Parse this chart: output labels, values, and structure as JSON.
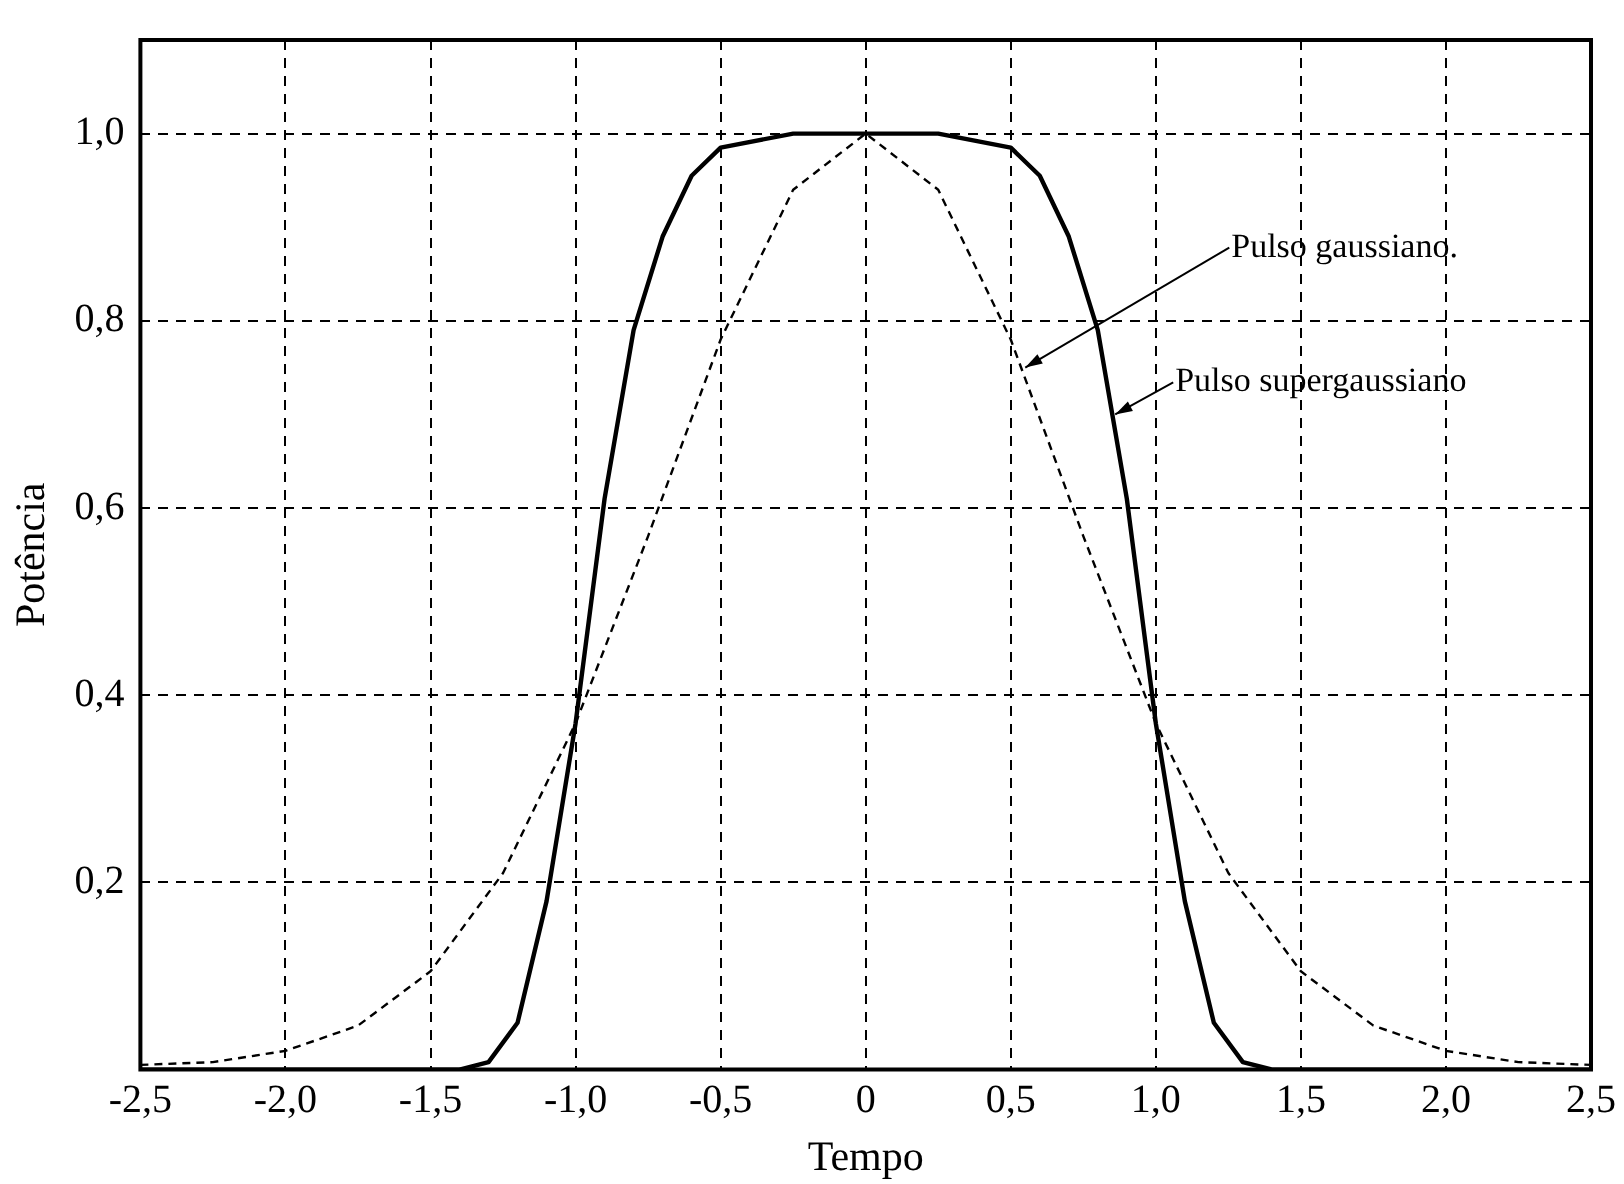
{
  "chart_data": {
    "type": "line",
    "xlabel": "Tempo",
    "ylabel": "Potência",
    "xlim": [
      -2.5,
      2.5
    ],
    "xticks": [
      {
        "value": -2.5,
        "label": "-2,5"
      },
      {
        "value": -2,
        "label": "-2,0"
      },
      {
        "value": -1.5,
        "label": "-1,5"
      },
      {
        "value": -1,
        "label": "-1,0"
      },
      {
        "value": -0.5,
        "label": "-0,5"
      },
      0,
      {
        "value": 0.5,
        "label": "0,5"
      },
      {
        "value": 1,
        "label": "1,0"
      },
      {
        "value": 1.5,
        "label": "1,5"
      },
      {
        "value": 2,
        "label": "2,0"
      },
      {
        "value": 2.5,
        "label": "2,5"
      }
    ],
    "ylim": [
      0,
      1.1
    ],
    "yticks": [
      {
        "value": 0.2,
        "label": "0,2"
      },
      {
        "value": 0.4,
        "label": "0,4"
      },
      {
        "value": 0.6,
        "label": "0,6"
      },
      {
        "value": 0.8,
        "label": "0,8"
      },
      {
        "value": 1,
        "label": "1,0"
      }
    ],
    "grid": true,
    "legend": false,
    "series": [
      {
        "color": "#000000",
        "line_style": "solid",
        "x": [
          -2.5,
          -1.4,
          -1.3,
          -1.2,
          -1.1,
          -1.0,
          -0.9,
          -0.8,
          -0.7,
          -0.6,
          -0.5,
          -0.25,
          0,
          0.25,
          0.5,
          0.6,
          0.7,
          0.8,
          0.9,
          1.0,
          1.1,
          1.2,
          1.3,
          1.4,
          2.5
        ],
        "values": [
          0,
          0,
          0.008,
          0.05,
          0.18,
          0.37,
          0.61,
          0.79,
          0.89,
          0.955,
          0.985,
          1.0,
          1.0,
          1.0,
          0.985,
          0.955,
          0.89,
          0.79,
          0.61,
          0.37,
          0.18,
          0.05,
          0.008,
          0,
          0
        ]
      },
      {
        "color": "#000000",
        "line_style": "dashed",
        "x": [
          -2.5,
          -2.25,
          -2.0,
          -1.75,
          -1.5,
          -1.25,
          -1.0,
          -0.75,
          -0.5,
          -0.25,
          0,
          0.25,
          0.5,
          0.75,
          1.0,
          1.25,
          1.5,
          1.75,
          2.0,
          2.25,
          2.5
        ],
        "values": [
          0.005,
          0.008,
          0.02,
          0.047,
          0.105,
          0.21,
          0.37,
          0.57,
          0.78,
          0.94,
          1.0,
          0.94,
          0.78,
          0.57,
          0.37,
          0.21,
          0.105,
          0.047,
          0.02,
          0.008,
          0.005
        ]
      }
    ],
    "annotations": [
      {
        "text": "Pulso gaussiano.",
        "x": 0.55,
        "y": 0.75
      },
      {
        "text": "Pulso supergaussiano",
        "x": 0.86,
        "y": 0.7
      }
    ]
  }
}
